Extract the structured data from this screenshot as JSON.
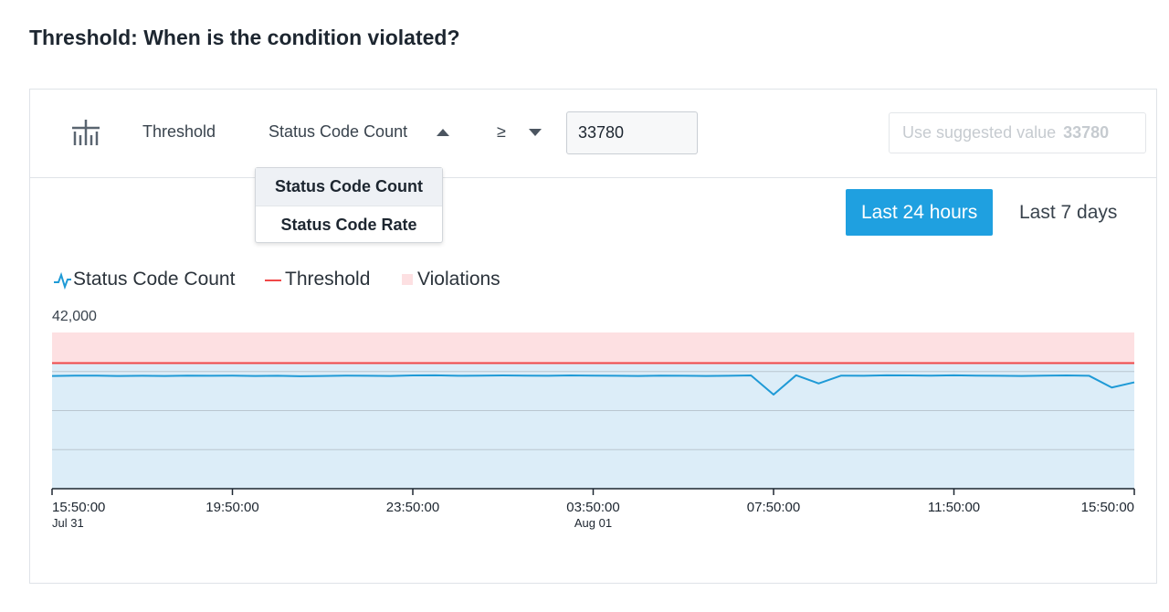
{
  "header": {
    "title": "Threshold: When is the condition violated?"
  },
  "controls": {
    "label": "Threshold",
    "metric": "Status Code Count",
    "operator": "≥",
    "value": "33780",
    "suggest_label": "Use suggested value",
    "suggest_value": "33780"
  },
  "dropdown": {
    "options": [
      "Status Code Count",
      "Status Code Rate"
    ],
    "highlighted": 0
  },
  "time_range": {
    "options": [
      "Last 24 hours",
      "Last 7 days"
    ],
    "selected": 0
  },
  "chart_data": {
    "type": "line",
    "categories": [
      "Jul 31 15:50:00",
      "Jul 31 16:20:00",
      "Jul 31 16:50:00",
      "Jul 31 17:20:00",
      "Jul 31 17:50:00",
      "Jul 31 18:20:00",
      "Jul 31 18:50:00",
      "Jul 31 19:20:00",
      "Jul 31 19:50:00",
      "Jul 31 20:20:00",
      "Jul 31 20:50:00",
      "Jul 31 21:20:00",
      "Jul 31 21:50:00",
      "Jul 31 22:20:00",
      "Jul 31 22:50:00",
      "Jul 31 23:20:00",
      "Jul 31 23:50:00",
      "Aug 01 00:20:00",
      "Aug 01 00:50:00",
      "Aug 01 01:20:00",
      "Aug 01 01:50:00",
      "Aug 01 02:20:00",
      "Aug 01 02:50:00",
      "Aug 01 03:20:00",
      "Aug 01 03:50:00",
      "Aug 01 04:20:00",
      "Aug 01 04:50:00",
      "Aug 01 05:20:00",
      "Aug 01 05:50:00",
      "Aug 01 06:20:00",
      "Aug 01 06:50:00",
      "Aug 01 07:20:00",
      "Aug 01 07:50:00",
      "Aug 01 08:20:00",
      "Aug 01 08:50:00",
      "Aug 01 09:20:00",
      "Aug 01 09:50:00",
      "Aug 01 10:20:00",
      "Aug 01 10:50:00",
      "Aug 01 11:20:00",
      "Aug 01 11:50:00",
      "Aug 01 12:20:00",
      "Aug 01 12:50:00",
      "Aug 01 13:20:00",
      "Aug 01 13:50:00",
      "Aug 01 14:20:00",
      "Aug 01 14:50:00",
      "Aug 01 15:20:00",
      "Aug 01 15:50:00"
    ],
    "series": [
      {
        "name": "Status Code Count",
        "color": "#1f9ad6",
        "values": [
          30300,
          30400,
          30400,
          30300,
          30350,
          30300,
          30400,
          30350,
          30400,
          30300,
          30350,
          30250,
          30300,
          30400,
          30350,
          30300,
          30450,
          30500,
          30350,
          30400,
          30450,
          30400,
          30350,
          30450,
          30400,
          30350,
          30300,
          30400,
          30350,
          30300,
          30350,
          30450,
          25300,
          30500,
          28300,
          30400,
          30350,
          30500,
          30450,
          30400,
          30500,
          30400,
          30350,
          30300,
          30400,
          30450,
          30350,
          27200,
          28600
        ]
      }
    ],
    "threshold": {
      "name": "Threshold",
      "value": 33780,
      "color": "#f04848"
    },
    "violations": {
      "name": "Violations",
      "color": "#fde0e2"
    },
    "ylim": [
      0,
      42000
    ],
    "yticks": [
      {
        "value": 42000,
        "label": "42,000"
      }
    ],
    "ygrid": [
      10500,
      21000,
      31500
    ],
    "xticks": [
      {
        "value": "Jul 31 15:50:00",
        "label": "15:50:00",
        "date": "Jul 31"
      },
      {
        "value": "Jul 31 19:50:00",
        "label": "19:50:00"
      },
      {
        "value": "Jul 31 23:50:00",
        "label": "23:50:00"
      },
      {
        "value": "Aug 01 03:50:00",
        "label": "03:50:00",
        "date": "Aug 01"
      },
      {
        "value": "Aug 01 07:50:00",
        "label": "07:50:00"
      },
      {
        "value": "Aug 01 11:50:00",
        "label": "11:50:00"
      },
      {
        "value": "Aug 01 15:50:00",
        "label": "15:50:00"
      }
    ]
  }
}
